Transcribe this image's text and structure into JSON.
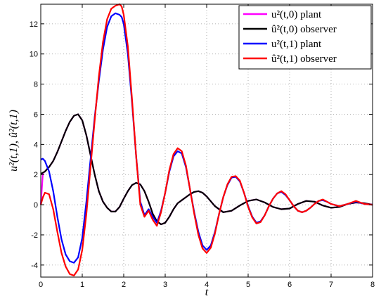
{
  "chart_data": {
    "type": "line",
    "xlabel": "t",
    "ylabel": "u²(t,1), û²(t,1)",
    "xlim": [
      0,
      8
    ],
    "ylim": [
      -4.8,
      13.3
    ],
    "xticks": [
      "0",
      "1",
      "2",
      "3",
      "4",
      "5",
      "6",
      "7",
      "8"
    ],
    "yticks": [
      "-4",
      "-2",
      "0",
      "2",
      "4",
      "6",
      "8",
      "10",
      "12"
    ],
    "grid": true,
    "legend_position": "top-right",
    "series": [
      {
        "name": "u²(t,0) plant",
        "color": "#ff00ff",
        "x": [
          0,
          0.05,
          0.1,
          0.2,
          0.3,
          0.4,
          0.5,
          0.6,
          0.7,
          0.8,
          0.9,
          1.0,
          1.1,
          1.2,
          1.3,
          1.4,
          1.5,
          1.6,
          1.7,
          1.8,
          1.9,
          2.0,
          2.1,
          2.2,
          2.3,
          2.4,
          2.5,
          2.6,
          2.7,
          2.8,
          2.9,
          3.0,
          3.1,
          3.2,
          3.3,
          3.4,
          3.5,
          3.6,
          3.7,
          3.8,
          3.9,
          4.0,
          4.2,
          4.4,
          4.6,
          4.8,
          5.0,
          5.2,
          5.4,
          5.6,
          5.8,
          6.0,
          6.2,
          6.4,
          6.6,
          6.8,
          7.0,
          7.2,
          7.4,
          7.6,
          7.8,
          8.0
        ],
        "values": [
          0,
          2.1,
          2.2,
          2.5,
          2.9,
          3.5,
          4.2,
          4.9,
          5.5,
          5.9,
          6.0,
          5.6,
          4.6,
          3.3,
          2.0,
          0.9,
          0.2,
          -0.2,
          -0.45,
          -0.45,
          -0.15,
          0.4,
          0.9,
          1.3,
          1.45,
          1.35,
          0.9,
          0.2,
          -0.6,
          -1.1,
          -1.3,
          -1.2,
          -0.8,
          -0.3,
          0.1,
          0.3,
          0.5,
          0.7,
          0.85,
          0.9,
          0.8,
          0.55,
          -0.1,
          -0.5,
          -0.4,
          -0.05,
          0.25,
          0.35,
          0.15,
          -0.15,
          -0.3,
          -0.25,
          0.05,
          0.25,
          0.2,
          -0.05,
          -0.2,
          -0.15,
          0.05,
          0.15,
          0.1,
          0.0
        ]
      },
      {
        "name": "û²(t,0) observer",
        "color": "#000000",
        "x": [
          0,
          0.1,
          0.2,
          0.3,
          0.4,
          0.5,
          0.6,
          0.7,
          0.8,
          0.9,
          1.0,
          1.1,
          1.2,
          1.3,
          1.4,
          1.5,
          1.6,
          1.7,
          1.8,
          1.9,
          2.0,
          2.1,
          2.2,
          2.3,
          2.4,
          2.5,
          2.6,
          2.7,
          2.8,
          2.9,
          3.0,
          3.1,
          3.2,
          3.3,
          3.4,
          3.5,
          3.6,
          3.7,
          3.8,
          3.9,
          4.0,
          4.2,
          4.4,
          4.6,
          4.8,
          5.0,
          5.2,
          5.4,
          5.6,
          5.8,
          6.0,
          6.2,
          6.4,
          6.6,
          6.8,
          7.0,
          7.2,
          7.4,
          7.6,
          7.8,
          8.0
        ],
        "values": [
          2.05,
          2.2,
          2.5,
          2.9,
          3.5,
          4.2,
          4.9,
          5.5,
          5.9,
          6.0,
          5.6,
          4.6,
          3.3,
          2.0,
          0.9,
          0.2,
          -0.2,
          -0.45,
          -0.45,
          -0.15,
          0.4,
          0.9,
          1.3,
          1.45,
          1.35,
          0.9,
          0.2,
          -0.6,
          -1.1,
          -1.3,
          -1.2,
          -0.8,
          -0.3,
          0.1,
          0.3,
          0.5,
          0.7,
          0.85,
          0.9,
          0.8,
          0.55,
          -0.1,
          -0.5,
          -0.4,
          -0.05,
          0.25,
          0.35,
          0.15,
          -0.15,
          -0.3,
          -0.25,
          0.05,
          0.25,
          0.2,
          -0.05,
          -0.2,
          -0.15,
          0.05,
          0.15,
          0.1,
          0.0
        ]
      },
      {
        "name": "u²(t,1) plant",
        "color": "#0000ff",
        "x": [
          0,
          0.05,
          0.1,
          0.2,
          0.3,
          0.4,
          0.5,
          0.6,
          0.7,
          0.8,
          0.9,
          1.0,
          1.1,
          1.2,
          1.3,
          1.4,
          1.5,
          1.6,
          1.7,
          1.8,
          1.9,
          1.95,
          2.0,
          2.1,
          2.2,
          2.3,
          2.4,
          2.5,
          2.6,
          2.7,
          2.8,
          2.9,
          3.0,
          3.1,
          3.2,
          3.3,
          3.4,
          3.5,
          3.6,
          3.7,
          3.8,
          3.9,
          4.0,
          4.1,
          4.2,
          4.3,
          4.4,
          4.5,
          4.6,
          4.7,
          4.8,
          4.9,
          5.0,
          5.1,
          5.2,
          5.3,
          5.4,
          5.5,
          5.6,
          5.7,
          5.8,
          5.9,
          6.0,
          6.1,
          6.2,
          6.3,
          6.4,
          6.5,
          6.6,
          6.7,
          6.8,
          6.9,
          7.0,
          7.2,
          7.4,
          7.6,
          7.8,
          8.0
        ],
        "values": [
          3.0,
          3.05,
          2.9,
          2.2,
          0.9,
          -0.8,
          -2.3,
          -3.3,
          -3.75,
          -3.85,
          -3.5,
          -2.2,
          0.2,
          3.0,
          5.8,
          8.2,
          10.3,
          11.8,
          12.5,
          12.7,
          12.6,
          12.45,
          12.0,
          10.0,
          6.8,
          3.2,
          0.2,
          -0.7,
          -0.3,
          -0.8,
          -1.2,
          -0.4,
          0.8,
          2.2,
          3.2,
          3.55,
          3.4,
          2.5,
          1.0,
          -0.5,
          -1.8,
          -2.7,
          -3.0,
          -2.7,
          -1.8,
          -0.6,
          0.5,
          1.3,
          1.8,
          1.85,
          1.55,
          0.8,
          -0.1,
          -0.8,
          -1.2,
          -1.1,
          -0.7,
          -0.1,
          0.4,
          0.75,
          0.85,
          0.65,
          0.3,
          -0.1,
          -0.4,
          -0.5,
          -0.4,
          -0.2,
          0.05,
          0.25,
          0.3,
          0.2,
          0.05,
          -0.1,
          0.05,
          0.2,
          0.05,
          0.0
        ]
      },
      {
        "name": "û²(t,1) observer",
        "color": "#ff0000",
        "x": [
          0,
          0.05,
          0.1,
          0.2,
          0.3,
          0.4,
          0.5,
          0.6,
          0.7,
          0.8,
          0.9,
          1.0,
          1.1,
          1.2,
          1.3,
          1.4,
          1.5,
          1.6,
          1.7,
          1.8,
          1.9,
          1.95,
          2.0,
          2.1,
          2.2,
          2.3,
          2.4,
          2.5,
          2.6,
          2.7,
          2.8,
          2.9,
          3.0,
          3.1,
          3.2,
          3.3,
          3.4,
          3.5,
          3.6,
          3.7,
          3.8,
          3.9,
          4.0,
          4.1,
          4.2,
          4.3,
          4.4,
          4.5,
          4.6,
          4.7,
          4.8,
          4.9,
          5.0,
          5.1,
          5.2,
          5.3,
          5.4,
          5.5,
          5.6,
          5.7,
          5.8,
          5.9,
          6.0,
          6.1,
          6.2,
          6.3,
          6.4,
          6.5,
          6.6,
          6.7,
          6.8,
          6.9,
          7.0,
          7.2,
          7.4,
          7.6,
          7.8,
          8.0
        ],
        "values": [
          0.0,
          0.5,
          0.8,
          0.7,
          -0.3,
          -1.8,
          -3.2,
          -4.1,
          -4.6,
          -4.7,
          -4.3,
          -3.0,
          -0.6,
          2.5,
          5.6,
          8.5,
          10.8,
          12.3,
          13.0,
          13.2,
          13.3,
          13.15,
          12.6,
          10.5,
          7.0,
          3.2,
          0.0,
          -0.8,
          -0.4,
          -1.0,
          -1.4,
          -0.5,
          0.8,
          2.3,
          3.35,
          3.75,
          3.55,
          2.6,
          1.0,
          -0.6,
          -2.0,
          -2.9,
          -3.2,
          -2.85,
          -1.9,
          -0.6,
          0.5,
          1.35,
          1.85,
          1.9,
          1.6,
          0.8,
          -0.15,
          -0.85,
          -1.25,
          -1.15,
          -0.7,
          -0.1,
          0.4,
          0.75,
          0.9,
          0.7,
          0.3,
          -0.1,
          -0.4,
          -0.5,
          -0.4,
          -0.2,
          0.05,
          0.25,
          0.35,
          0.2,
          0.05,
          -0.1,
          0.05,
          0.25,
          0.05,
          0.0
        ]
      }
    ]
  }
}
